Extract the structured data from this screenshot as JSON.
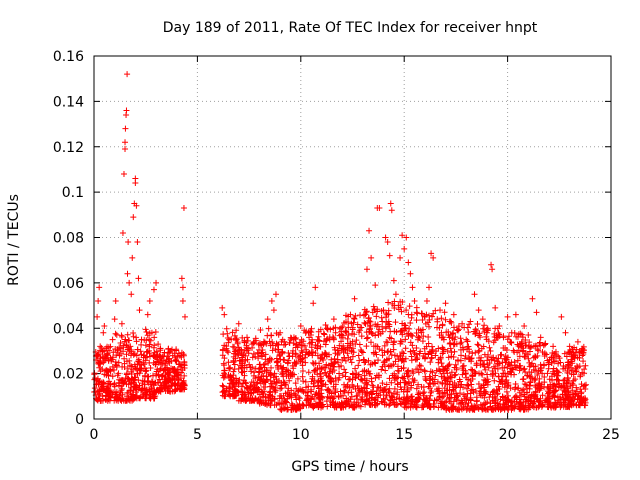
{
  "chart_data": {
    "type": "scatter",
    "title": "Day 189 of 2011, Rate Of TEC Index for receiver hnpt",
    "xlabel": "GPS time / hours",
    "ylabel": "ROTI / TECUs",
    "xlim": [
      0,
      25
    ],
    "ylim": [
      0,
      0.16
    ],
    "x_ticks": [
      0,
      5,
      10,
      15,
      20,
      25
    ],
    "y_ticks": [
      0,
      0.02,
      0.04,
      0.06,
      0.08,
      0.1,
      0.12,
      0.14,
      0.16
    ],
    "x_tick_labels": [
      "0",
      "5",
      "10",
      "15",
      "20",
      "25"
    ],
    "y_tick_labels": [
      "0",
      "0.02",
      "0.04",
      "0.06",
      "0.08",
      "0.1",
      "0.12",
      "0.14",
      "0.16"
    ],
    "grid": true,
    "marker": "+",
    "marker_color": "#ff0000",
    "points": [
      [
        0.05,
        0.018
      ],
      [
        0.1,
        0.026
      ],
      [
        0.15,
        0.045
      ],
      [
        0.2,
        0.052
      ],
      [
        0.25,
        0.058
      ],
      [
        0.3,
        0.032
      ],
      [
        0.35,
        0.015
      ],
      [
        0.4,
        0.022
      ],
      [
        0.45,
        0.038
      ],
      [
        0.5,
        0.041
      ],
      [
        0.6,
        0.012
      ],
      [
        0.7,
        0.019
      ],
      [
        0.8,
        0.027
      ],
      [
        0.9,
        0.035
      ],
      [
        1.0,
        0.044
      ],
      [
        1.05,
        0.052
      ],
      [
        1.1,
        0.023
      ],
      [
        1.2,
        0.016
      ],
      [
        1.3,
        0.031
      ],
      [
        1.35,
        0.042
      ],
      [
        1.4,
        0.082
      ],
      [
        1.45,
        0.108
      ],
      [
        1.5,
        0.119
      ],
      [
        1.5,
        0.122
      ],
      [
        1.52,
        0.128
      ],
      [
        1.55,
        0.134
      ],
      [
        1.57,
        0.136
      ],
      [
        1.6,
        0.152
      ],
      [
        1.62,
        0.064
      ],
      [
        1.65,
        0.078
      ],
      [
        1.7,
        0.06
      ],
      [
        1.8,
        0.055
      ],
      [
        1.85,
        0.071
      ],
      [
        1.9,
        0.089
      ],
      [
        1.95,
        0.095
      ],
      [
        2.0,
        0.104
      ],
      [
        2.0,
        0.106
      ],
      [
        2.05,
        0.094
      ],
      [
        2.1,
        0.078
      ],
      [
        2.15,
        0.062
      ],
      [
        2.2,
        0.048
      ],
      [
        2.3,
        0.035
      ],
      [
        2.4,
        0.028
      ],
      [
        2.5,
        0.021
      ],
      [
        2.6,
        0.046
      ],
      [
        2.7,
        0.052
      ],
      [
        2.8,
        0.038
      ],
      [
        2.9,
        0.057
      ],
      [
        3.0,
        0.06
      ],
      [
        3.1,
        0.033
      ],
      [
        3.2,
        0.025
      ],
      [
        3.3,
        0.019
      ],
      [
        3.5,
        0.026
      ],
      [
        3.6,
        0.031
      ],
      [
        3.8,
        0.022
      ],
      [
        3.9,
        0.029
      ],
      [
        4.0,
        0.018
      ],
      [
        4.1,
        0.024
      ],
      [
        4.2,
        0.028
      ],
      [
        4.25,
        0.062
      ],
      [
        4.3,
        0.058
      ],
      [
        4.3,
        0.052
      ],
      [
        4.35,
        0.093
      ],
      [
        4.4,
        0.045
      ],
      [
        6.2,
        0.049
      ],
      [
        6.3,
        0.046
      ],
      [
        6.4,
        0.031
      ],
      [
        6.5,
        0.025
      ],
      [
        6.6,
        0.019
      ],
      [
        6.7,
        0.014
      ],
      [
        6.8,
        0.022
      ],
      [
        6.9,
        0.035
      ],
      [
        7.0,
        0.042
      ],
      [
        7.2,
        0.028
      ],
      [
        7.4,
        0.036
      ],
      [
        7.6,
        0.021
      ],
      [
        7.8,
        0.018
      ],
      [
        8.0,
        0.024
      ],
      [
        8.2,
        0.033
      ],
      [
        8.4,
        0.044
      ],
      [
        8.6,
        0.052
      ],
      [
        8.7,
        0.048
      ],
      [
        8.8,
        0.055
      ],
      [
        9.0,
        0.038
      ],
      [
        9.2,
        0.026
      ],
      [
        9.4,
        0.019
      ],
      [
        9.6,
        0.029
      ],
      [
        9.8,
        0.033
      ],
      [
        10.0,
        0.041
      ],
      [
        10.2,
        0.027
      ],
      [
        10.4,
        0.036
      ],
      [
        10.6,
        0.051
      ],
      [
        10.7,
        0.058
      ],
      [
        10.8,
        0.031
      ],
      [
        11.0,
        0.022
      ],
      [
        11.2,
        0.029
      ],
      [
        11.4,
        0.035
      ],
      [
        11.6,
        0.044
      ],
      [
        11.8,
        0.025
      ],
      [
        12.0,
        0.031
      ],
      [
        12.2,
        0.038
      ],
      [
        12.4,
        0.046
      ],
      [
        12.6,
        0.053
      ],
      [
        12.8,
        0.028
      ],
      [
        13.0,
        0.021
      ],
      [
        13.2,
        0.066
      ],
      [
        13.3,
        0.083
      ],
      [
        13.4,
        0.071
      ],
      [
        13.6,
        0.059
      ],
      [
        13.7,
        0.093
      ],
      [
        13.8,
        0.093
      ],
      [
        14.0,
        0.048
      ],
      [
        14.1,
        0.08
      ],
      [
        14.2,
        0.078
      ],
      [
        14.3,
        0.072
      ],
      [
        14.35,
        0.095
      ],
      [
        14.4,
        0.092
      ],
      [
        14.5,
        0.061
      ],
      [
        14.6,
        0.055
      ],
      [
        14.8,
        0.071
      ],
      [
        14.9,
        0.081
      ],
      [
        15.0,
        0.075
      ],
      [
        15.1,
        0.08
      ],
      [
        15.2,
        0.069
      ],
      [
        15.3,
        0.064
      ],
      [
        15.4,
        0.058
      ],
      [
        15.5,
        0.052
      ],
      [
        15.6,
        0.047
      ],
      [
        15.8,
        0.039
      ],
      [
        16.0,
        0.045
      ],
      [
        16.1,
        0.052
      ],
      [
        16.2,
        0.058
      ],
      [
        16.3,
        0.073
      ],
      [
        16.4,
        0.071
      ],
      [
        16.6,
        0.044
      ],
      [
        16.8,
        0.038
      ],
      [
        17.0,
        0.051
      ],
      [
        17.2,
        0.043
      ],
      [
        17.4,
        0.046
      ],
      [
        17.6,
        0.039
      ],
      [
        17.8,
        0.042
      ],
      [
        18.0,
        0.035
      ],
      [
        18.2,
        0.043
      ],
      [
        18.4,
        0.055
      ],
      [
        18.6,
        0.048
      ],
      [
        18.8,
        0.044
      ],
      [
        19.0,
        0.038
      ],
      [
        19.2,
        0.068
      ],
      [
        19.25,
        0.066
      ],
      [
        19.4,
        0.049
      ],
      [
        19.6,
        0.041
      ],
      [
        19.8,
        0.036
      ],
      [
        20.0,
        0.045
      ],
      [
        20.2,
        0.038
      ],
      [
        20.4,
        0.046
      ],
      [
        20.6,
        0.033
      ],
      [
        20.8,
        0.041
      ],
      [
        21.0,
        0.037
      ],
      [
        21.2,
        0.053
      ],
      [
        21.4,
        0.047
      ],
      [
        21.6,
        0.036
      ],
      [
        21.8,
        0.029
      ],
      [
        22.0,
        0.024
      ],
      [
        22.2,
        0.032
      ],
      [
        22.4,
        0.019
      ],
      [
        22.6,
        0.045
      ],
      [
        22.8,
        0.038
      ],
      [
        23.0,
        0.032
      ],
      [
        23.2,
        0.028
      ],
      [
        23.4,
        0.034
      ],
      [
        23.6,
        0.031
      ],
      [
        23.7,
        0.022
      ]
    ],
    "band": [
      [
        0.0,
        1.0,
        0.008,
        0.032
      ],
      [
        1.0,
        2.0,
        0.008,
        0.038
      ],
      [
        2.0,
        3.0,
        0.009,
        0.04
      ],
      [
        3.0,
        4.0,
        0.012,
        0.032
      ],
      [
        4.0,
        4.4,
        0.013,
        0.03
      ],
      [
        6.2,
        7.0,
        0.01,
        0.04
      ],
      [
        7.0,
        8.0,
        0.008,
        0.036
      ],
      [
        8.0,
        9.0,
        0.006,
        0.04
      ],
      [
        9.0,
        10.0,
        0.004,
        0.036
      ],
      [
        10.0,
        11.0,
        0.005,
        0.04
      ],
      [
        11.0,
        12.0,
        0.005,
        0.042
      ],
      [
        12.0,
        13.0,
        0.005,
        0.046
      ],
      [
        13.0,
        14.0,
        0.006,
        0.05
      ],
      [
        14.0,
        15.0,
        0.006,
        0.052
      ],
      [
        15.0,
        16.0,
        0.005,
        0.05
      ],
      [
        16.0,
        17.0,
        0.005,
        0.048
      ],
      [
        17.0,
        18.0,
        0.004,
        0.044
      ],
      [
        18.0,
        19.0,
        0.004,
        0.042
      ],
      [
        19.0,
        20.0,
        0.004,
        0.04
      ],
      [
        20.0,
        21.0,
        0.004,
        0.038
      ],
      [
        21.0,
        22.0,
        0.005,
        0.034
      ],
      [
        22.0,
        23.0,
        0.005,
        0.03
      ],
      [
        23.0,
        23.8,
        0.006,
        0.032
      ]
    ]
  }
}
